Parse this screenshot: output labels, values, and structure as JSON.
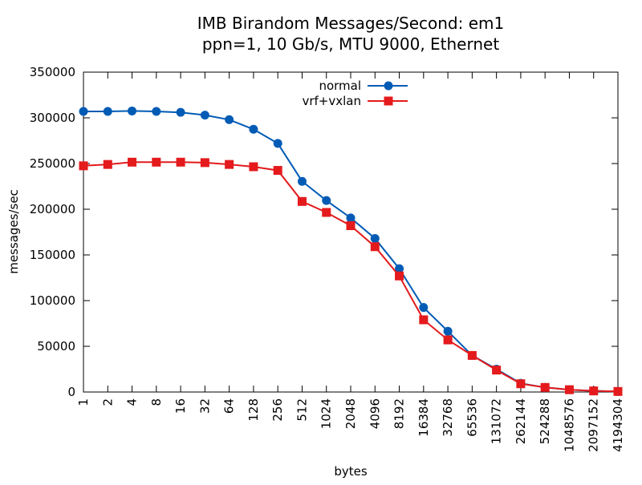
{
  "chart_data": {
    "type": "line",
    "title_lines": [
      "IMB Birandom Messages/Second: em1",
      "ppn=1, 10 Gb/s, MTU 9000, Ethernet"
    ],
    "xlabel": "bytes",
    "ylabel": "messages/sec",
    "categories": [
      "1",
      "2",
      "4",
      "8",
      "16",
      "32",
      "64",
      "128",
      "256",
      "512",
      "1024",
      "2048",
      "4096",
      "8192",
      "16384",
      "32768",
      "65536",
      "131072",
      "262144",
      "524288",
      "1048576",
      "2097152",
      "4194304"
    ],
    "y_ticks": [
      "0",
      "50000",
      "100000",
      "150000",
      "200000",
      "250000",
      "300000",
      "350000"
    ],
    "ylim": [
      0,
      350000
    ],
    "grid": false,
    "legend_position": "top-center",
    "series": [
      {
        "name": "normal",
        "color": "#005bb5",
        "marker": "circle",
        "values": [
          307000,
          307000,
          307500,
          307000,
          306000,
          303000,
          298000,
          287500,
          272000,
          230500,
          209500,
          190500,
          168000,
          135000,
          92500,
          66500,
          40000,
          25000,
          9500,
          5000,
          2500,
          1200,
          600
        ]
      },
      {
        "name": "vrf+vxlan",
        "color": "#e41a1c",
        "marker": "square",
        "values": [
          247500,
          249000,
          251500,
          251500,
          251500,
          251000,
          249000,
          246500,
          242500,
          208500,
          196500,
          182000,
          159000,
          127000,
          79000,
          57000,
          40000,
          24000,
          9000,
          5000,
          2500,
          1200,
          600
        ]
      }
    ]
  }
}
